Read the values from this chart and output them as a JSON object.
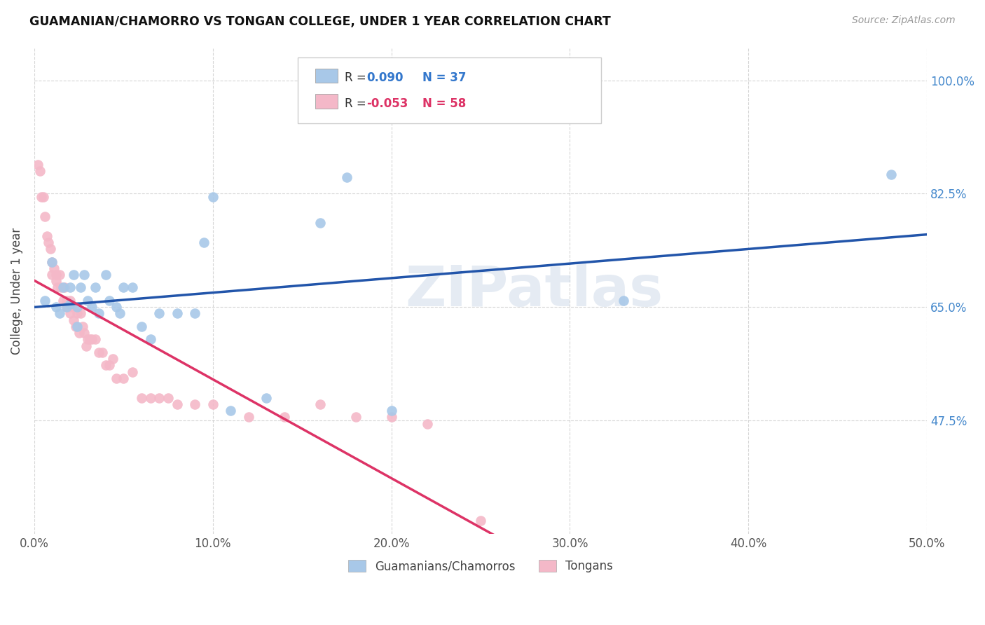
{
  "title": "GUAMANIAN/CHAMORRO VS TONGAN COLLEGE, UNDER 1 YEAR CORRELATION CHART",
  "source": "Source: ZipAtlas.com",
  "ylabel": "College, Under 1 year",
  "xlim": [
    0.0,
    0.5
  ],
  "ylim": [
    0.3,
    1.05
  ],
  "xtick_labels": [
    "0.0%",
    "10.0%",
    "20.0%",
    "30.0%",
    "40.0%",
    "50.0%"
  ],
  "xtick_vals": [
    0.0,
    0.1,
    0.2,
    0.3,
    0.4,
    0.5
  ],
  "ytick_labels": [
    "47.5%",
    "65.0%",
    "82.5%",
    "100.0%"
  ],
  "ytick_vals": [
    0.475,
    0.65,
    0.825,
    1.0
  ],
  "guamanian_color": "#a8c8e8",
  "tongan_color": "#f4b8c8",
  "trend_blue": "#2255aa",
  "trend_pink": "#dd3366",
  "watermark": "ZIPatlas",
  "guamanian_R": 0.09,
  "guamanian_N": 37,
  "tongan_R": -0.053,
  "tongan_N": 58,
  "guamanian_x": [
    0.006,
    0.01,
    0.012,
    0.014,
    0.016,
    0.018,
    0.02,
    0.02,
    0.022,
    0.024,
    0.024,
    0.026,
    0.028,
    0.03,
    0.032,
    0.034,
    0.036,
    0.04,
    0.042,
    0.046,
    0.048,
    0.05,
    0.055,
    0.06,
    0.065,
    0.07,
    0.08,
    0.09,
    0.095,
    0.1,
    0.11,
    0.13,
    0.16,
    0.175,
    0.2,
    0.33,
    0.48
  ],
  "guamanian_y": [
    0.66,
    0.72,
    0.65,
    0.64,
    0.68,
    0.65,
    0.68,
    0.655,
    0.7,
    0.65,
    0.62,
    0.68,
    0.7,
    0.66,
    0.65,
    0.68,
    0.64,
    0.7,
    0.66,
    0.65,
    0.64,
    0.68,
    0.68,
    0.62,
    0.6,
    0.64,
    0.64,
    0.64,
    0.75,
    0.82,
    0.49,
    0.51,
    0.78,
    0.85,
    0.49,
    0.66,
    0.855
  ],
  "tongan_x": [
    0.002,
    0.003,
    0.004,
    0.005,
    0.006,
    0.007,
    0.008,
    0.009,
    0.01,
    0.01,
    0.011,
    0.012,
    0.012,
    0.013,
    0.014,
    0.015,
    0.016,
    0.017,
    0.018,
    0.018,
    0.019,
    0.02,
    0.02,
    0.021,
    0.022,
    0.023,
    0.024,
    0.025,
    0.026,
    0.027,
    0.028,
    0.029,
    0.03,
    0.031,
    0.032,
    0.034,
    0.036,
    0.038,
    0.04,
    0.042,
    0.044,
    0.046,
    0.05,
    0.055,
    0.06,
    0.065,
    0.07,
    0.075,
    0.08,
    0.09,
    0.1,
    0.12,
    0.14,
    0.16,
    0.18,
    0.2,
    0.22,
    0.25
  ],
  "tongan_y": [
    0.87,
    0.86,
    0.82,
    0.82,
    0.79,
    0.76,
    0.75,
    0.74,
    0.72,
    0.7,
    0.71,
    0.69,
    0.7,
    0.68,
    0.7,
    0.68,
    0.66,
    0.68,
    0.66,
    0.65,
    0.65,
    0.66,
    0.64,
    0.65,
    0.63,
    0.62,
    0.64,
    0.61,
    0.64,
    0.62,
    0.61,
    0.59,
    0.6,
    0.6,
    0.6,
    0.6,
    0.58,
    0.58,
    0.56,
    0.56,
    0.57,
    0.54,
    0.54,
    0.55,
    0.51,
    0.51,
    0.51,
    0.51,
    0.5,
    0.5,
    0.5,
    0.48,
    0.48,
    0.5,
    0.48,
    0.48,
    0.47,
    0.32
  ]
}
